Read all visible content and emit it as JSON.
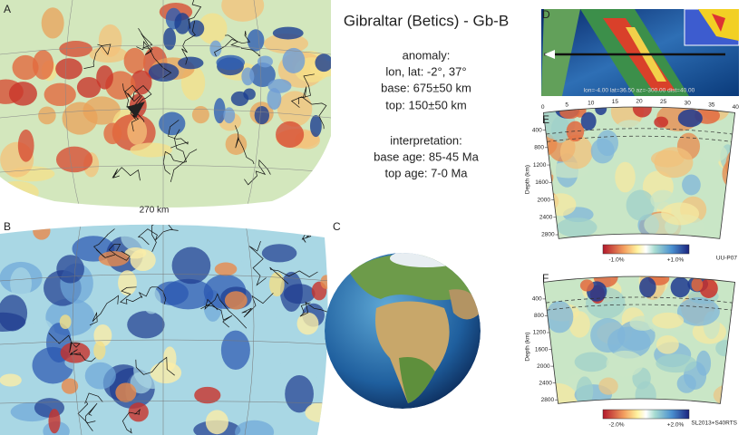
{
  "panels": {
    "a": "A",
    "b": "B",
    "c": "C",
    "d": "D",
    "e": "E",
    "f": "F"
  },
  "title": "Gibraltar (Betics) - Gb-B",
  "anomaly": {
    "heading": "anomaly:",
    "lines": [
      "lon, lat: -2°, 37°",
      "base: 675±50 km",
      "top: 150±50 km"
    ]
  },
  "interpretation": {
    "heading": "interpretation:",
    "lines": [
      "base age: 85-45 Ma",
      "top age: 7-0 Ma"
    ]
  },
  "map_a_depth_label": "270 km",
  "section_d_caption": "lon=-4.00 lat=36.50 az=-300.00 dist=40.00",
  "section_e": {
    "distance_ticks": [
      0,
      5,
      10,
      15,
      20,
      25,
      30,
      35,
      40
    ],
    "depth_ticks": [
      400,
      800,
      1200,
      1600,
      2000,
      2400,
      2800
    ],
    "depth_axis_label": "Depth (km)",
    "colorbar": {
      "min_label": "-1.0%",
      "max_label": "+1.0%"
    },
    "model": "UU-P07"
  },
  "section_f": {
    "depth_ticks": [
      400,
      800,
      1200,
      1600,
      2000,
      2400,
      2800
    ],
    "depth_axis_label": "Depth (km)",
    "colorbar": {
      "min_label": "-2.0%",
      "max_label": "+2.0%"
    },
    "model": "SL2013+S40RTS"
  }
}
